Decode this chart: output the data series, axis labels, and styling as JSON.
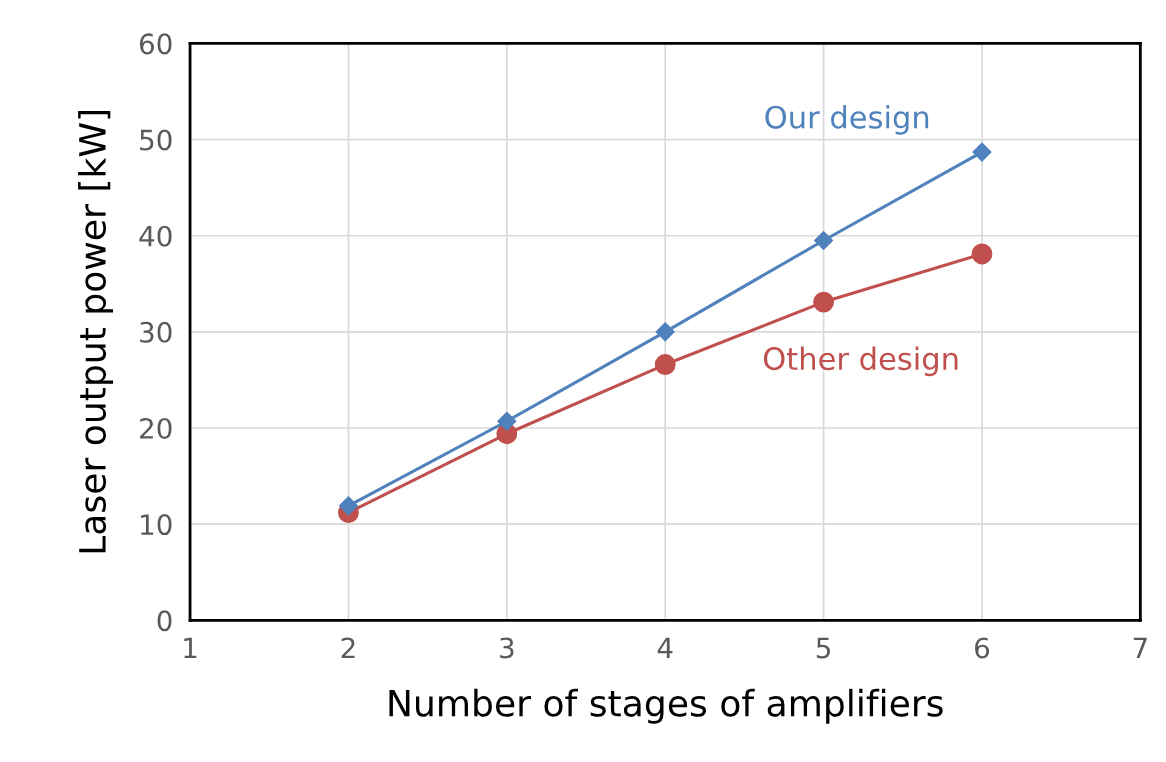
{
  "chart_data": {
    "type": "line",
    "xlabel": "Number of stages of amplifiers",
    "ylabel": "Laser output power [kW]",
    "x": [
      2,
      3,
      4,
      5,
      6
    ],
    "series": [
      {
        "name": "Our design",
        "color": "#4f81bd",
        "marker": "diamond",
        "values": [
          11.9,
          20.7,
          30.0,
          39.5,
          48.7
        ]
      },
      {
        "name": "Other design",
        "color": "#c0504d",
        "marker": "circle",
        "values": [
          11.2,
          19.4,
          26.6,
          33.1,
          38.1
        ]
      }
    ],
    "xlim": [
      1,
      7
    ],
    "xticks": [
      1,
      2,
      3,
      4,
      5,
      6,
      7
    ],
    "ylim": [
      0,
      60
    ],
    "yticks": [
      0,
      10,
      20,
      30,
      40,
      50,
      60
    ],
    "grid": true,
    "legend": false
  }
}
